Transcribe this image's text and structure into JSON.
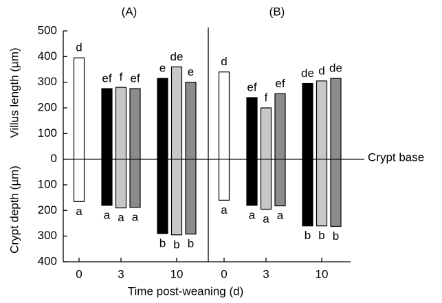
{
  "chart_data": {
    "type": "bipolar-bar",
    "ylabel_top": "Villus length (µm)",
    "ylabel_bottom": "Crypt depth (µm)",
    "xlabel": "Time post-weaning (d)",
    "annotation": "Crypt base",
    "ylim": [
      -400,
      500
    ],
    "yticks": [
      500,
      400,
      300,
      200,
      100,
      0,
      {
        "value": -100,
        "label": "100"
      },
      {
        "value": -200,
        "label": "200"
      },
      {
        "value": -300,
        "label": "300"
      },
      {
        "value": -400,
        "label": "400"
      }
    ],
    "panels": [
      {
        "title": "(A)",
        "groups": [
          {
            "category": "0",
            "bars": [
              {
                "color": "#ffffff",
                "values": [
                  395,
                  -165
                ],
                "value_labels": [
                  "d",
                  "a"
                ]
              }
            ]
          },
          {
            "category": "3",
            "bars": [
              {
                "color": "#000000",
                "values": [
                  275,
                  -180
                ],
                "value_labels": [
                  "ef",
                  "a"
                ]
              },
              {
                "color": "#c8c8c8",
                "values": [
                  280,
                  -190
                ],
                "value_labels": [
                  "f",
                  "a"
                ]
              },
              {
                "color": "#8c8c8c",
                "values": [
                  275,
                  -188
                ],
                "value_labels": [
                  "ef",
                  "a"
                ]
              }
            ]
          },
          {
            "category": "10",
            "bars": [
              {
                "color": "#000000",
                "values": [
                  315,
                  -290
                ],
                "value_labels": [
                  "e",
                  "b"
                ]
              },
              {
                "color": "#c8c8c8",
                "values": [
                  360,
                  -295
                ],
                "value_labels": [
                  "de",
                  "b"
                ]
              },
              {
                "color": "#8c8c8c",
                "values": [
                  300,
                  -292
                ],
                "value_labels": [
                  "e",
                  "b"
                ]
              }
            ]
          }
        ]
      },
      {
        "title": "(B)",
        "groups": [
          {
            "category": "0",
            "bars": [
              {
                "color": "#ffffff",
                "values": [
                  340,
                  -160
                ],
                "value_labels": [
                  "d",
                  "a"
                ]
              }
            ]
          },
          {
            "category": "3",
            "bars": [
              {
                "color": "#000000",
                "values": [
                  240,
                  -180
                ],
                "value_labels": [
                  "ef",
                  "a"
                ]
              },
              {
                "color": "#c8c8c8",
                "values": [
                  200,
                  -195
                ],
                "value_labels": [
                  "f",
                  "a"
                ]
              },
              {
                "color": "#8c8c8c",
                "values": [
                  255,
                  -182
                ],
                "value_labels": [
                  "ef",
                  "a"
                ]
              }
            ]
          },
          {
            "category": "10",
            "bars": [
              {
                "color": "#000000",
                "values": [
                  295,
                  -260
                ],
                "value_labels": [
                  "de",
                  "b"
                ]
              },
              {
                "color": "#c8c8c8",
                "values": [
                  305,
                  -260
                ],
                "value_labels": [
                  "d",
                  "b"
                ]
              },
              {
                "color": "#8c8c8c",
                "values": [
                  315,
                  -262
                ],
                "value_labels": [
                  "de",
                  "b"
                ]
              }
            ]
          }
        ]
      }
    ]
  }
}
